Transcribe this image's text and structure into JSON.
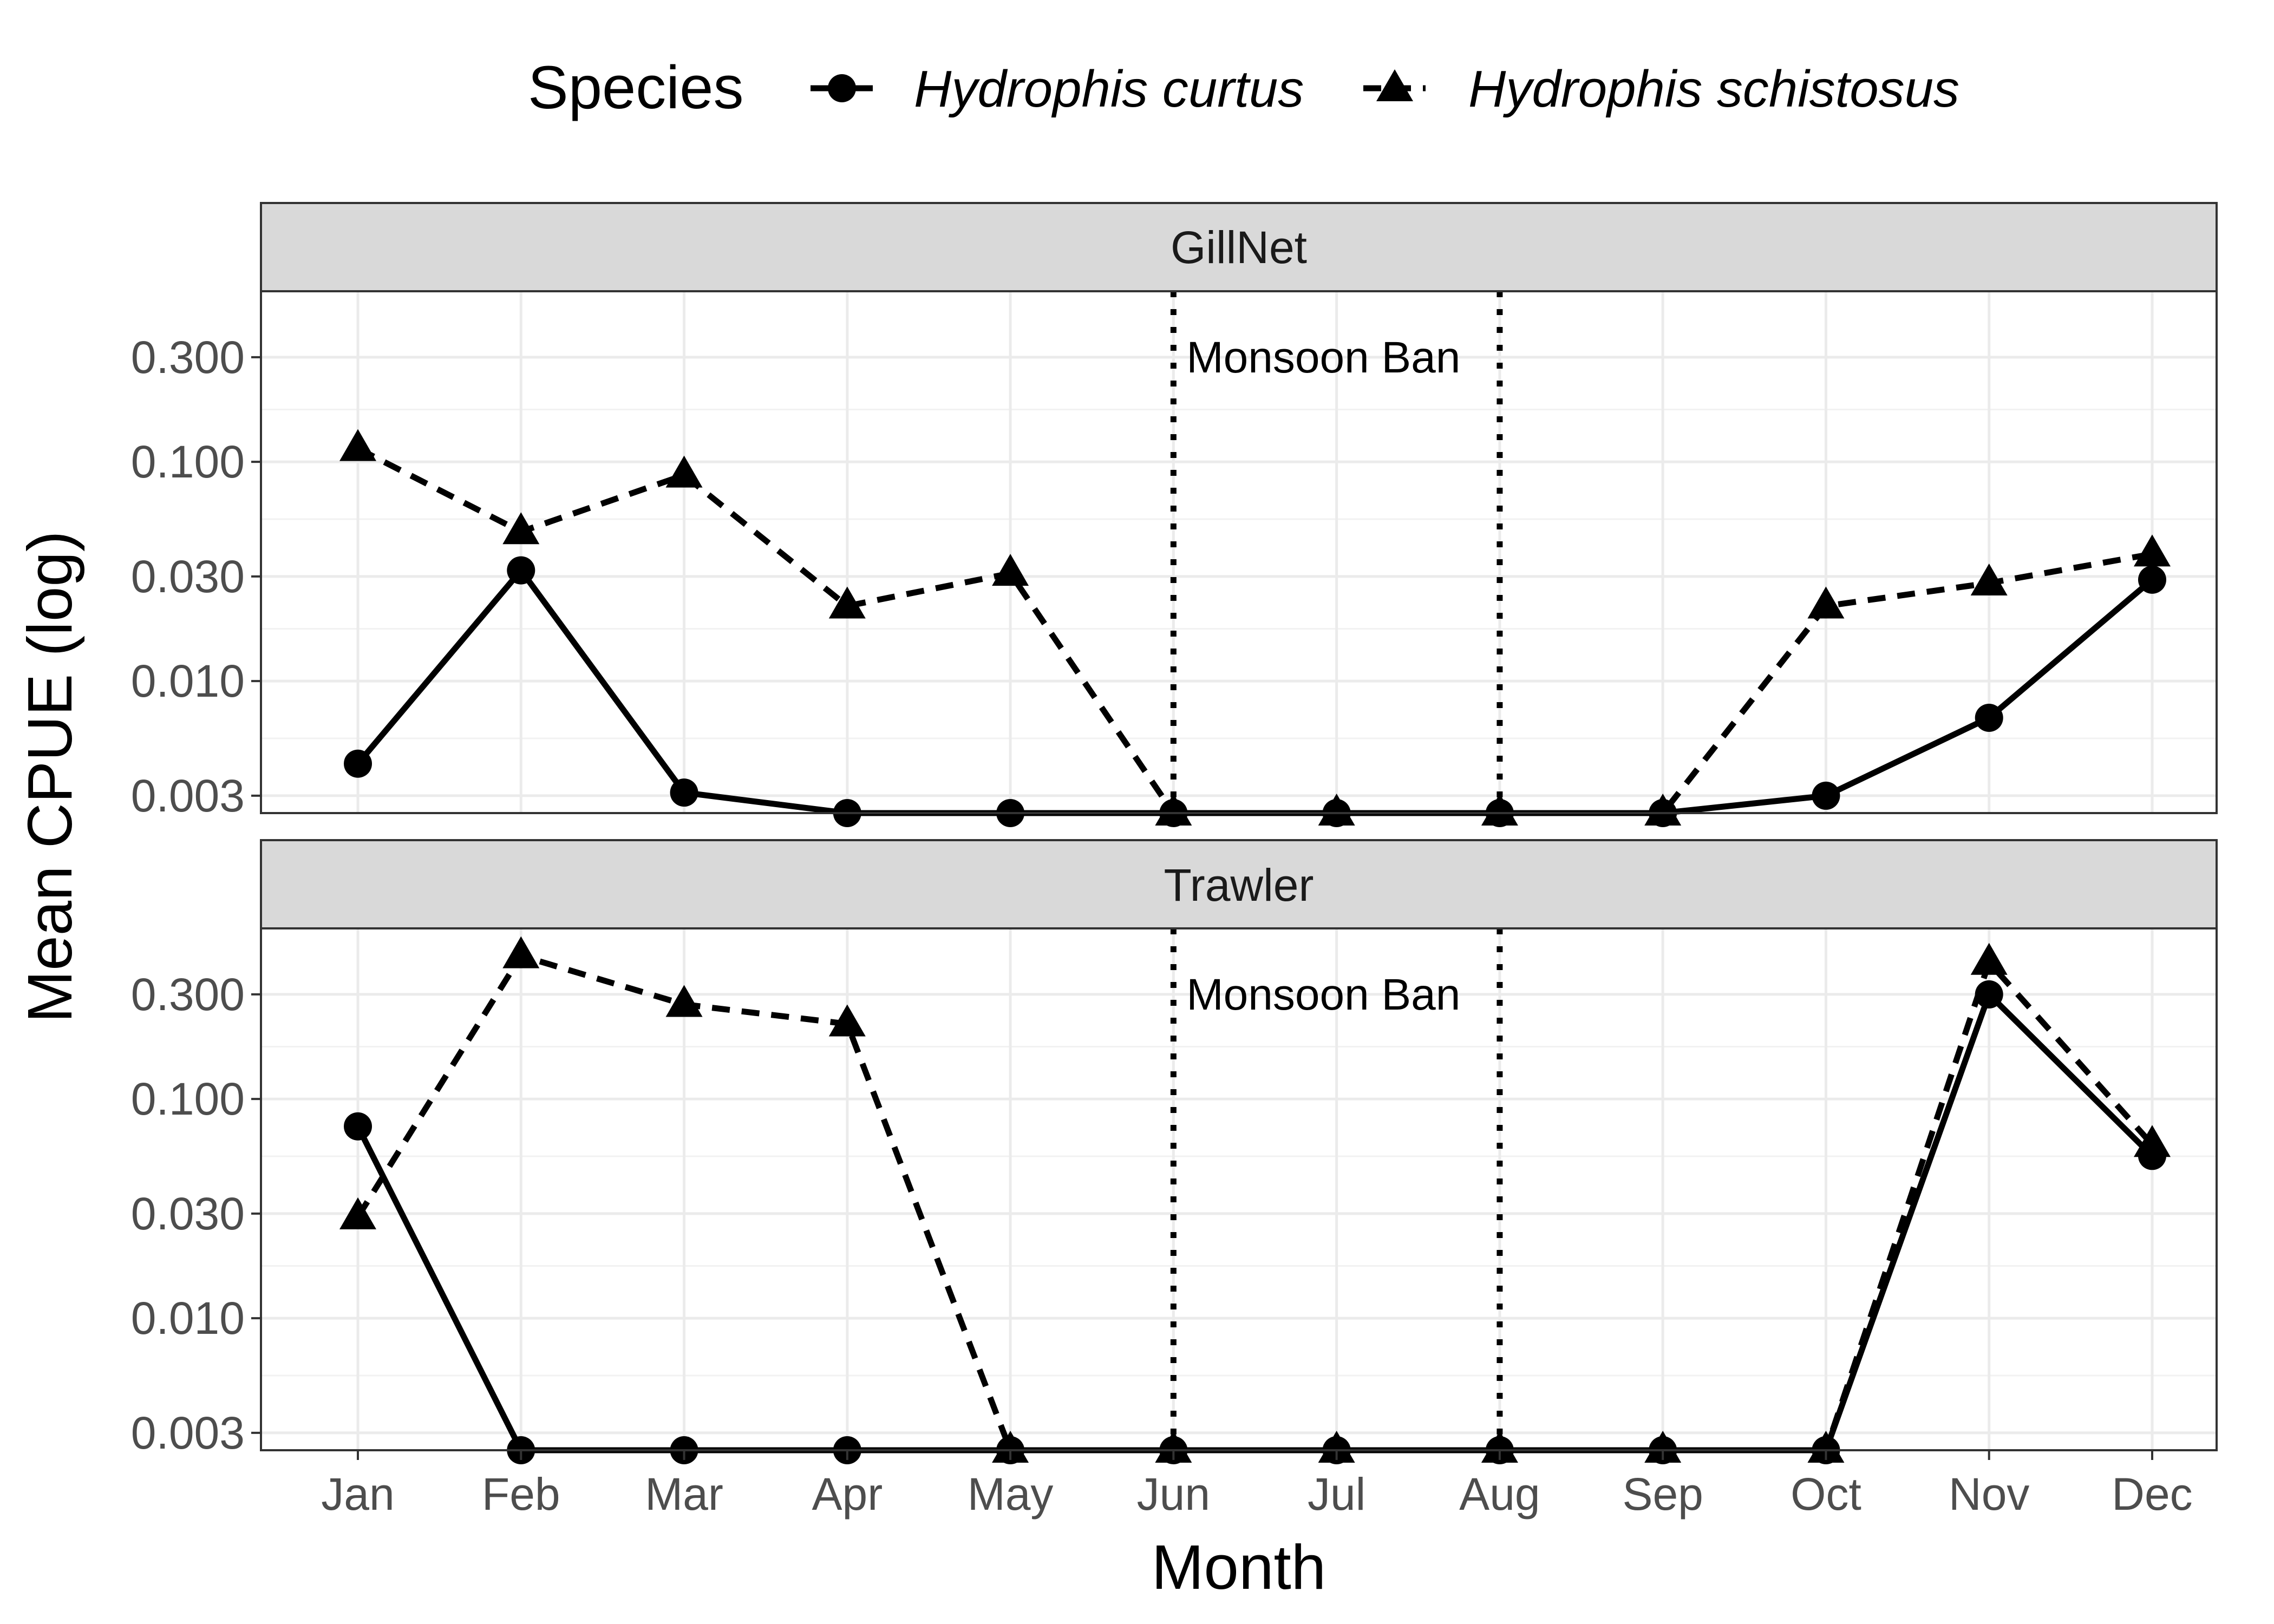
{
  "chart_data": {
    "type": "line",
    "x": [
      "Jan",
      "Feb",
      "Mar",
      "Apr",
      "May",
      "Jun",
      "Jul",
      "Aug",
      "Sep",
      "Oct",
      "Nov",
      "Dec"
    ],
    "xlabel": "Month",
    "ylabel": "Mean CPUE (log)",
    "y_scale": "log",
    "ylim": [
      0.0025,
      0.6
    ],
    "yticks": [
      "0.003",
      "0.010",
      "0.030",
      "0.100",
      "0.300"
    ],
    "legend": {
      "title": "Species",
      "position": "top"
    },
    "grid": true,
    "annotation": {
      "text": "Monsoon Ban",
      "from": "Jun",
      "to": "Aug"
    },
    "panels": [
      {
        "title": "GillNet",
        "series": [
          {
            "name": "Hydrophis curtus",
            "marker": "circle",
            "line": "solid",
            "values": [
              0.0042,
              0.032,
              0.0031,
              0.0025,
              0.0025,
              0.0025,
              0.0025,
              0.0025,
              0.0025,
              0.003,
              0.0068,
              0.029
            ]
          },
          {
            "name": "Hydrophis schistosus",
            "marker": "triangle",
            "line": "dashed",
            "values": [
              0.115,
              0.048,
              0.087,
              0.022,
              0.031,
              0.0025,
              0.0025,
              0.0025,
              0.0025,
              0.022,
              0.028,
              0.038
            ]
          }
        ]
      },
      {
        "title": "Trawler",
        "series": [
          {
            "name": "Hydrophis curtus",
            "marker": "circle",
            "line": "solid",
            "values": [
              0.075,
              0.0025,
              0.0025,
              0.0025,
              0.0025,
              0.0025,
              0.0025,
              0.0025,
              0.0025,
              0.0025,
              0.3,
              0.055
            ]
          },
          {
            "name": "Hydrophis schistosus",
            "marker": "triangle",
            "line": "dashed",
            "values": [
              0.029,
              0.45,
              0.27,
              0.22,
              0.0025,
              0.0025,
              0.0025,
              0.0025,
              0.0025,
              0.0025,
              0.42,
              0.062
            ]
          }
        ]
      }
    ]
  }
}
